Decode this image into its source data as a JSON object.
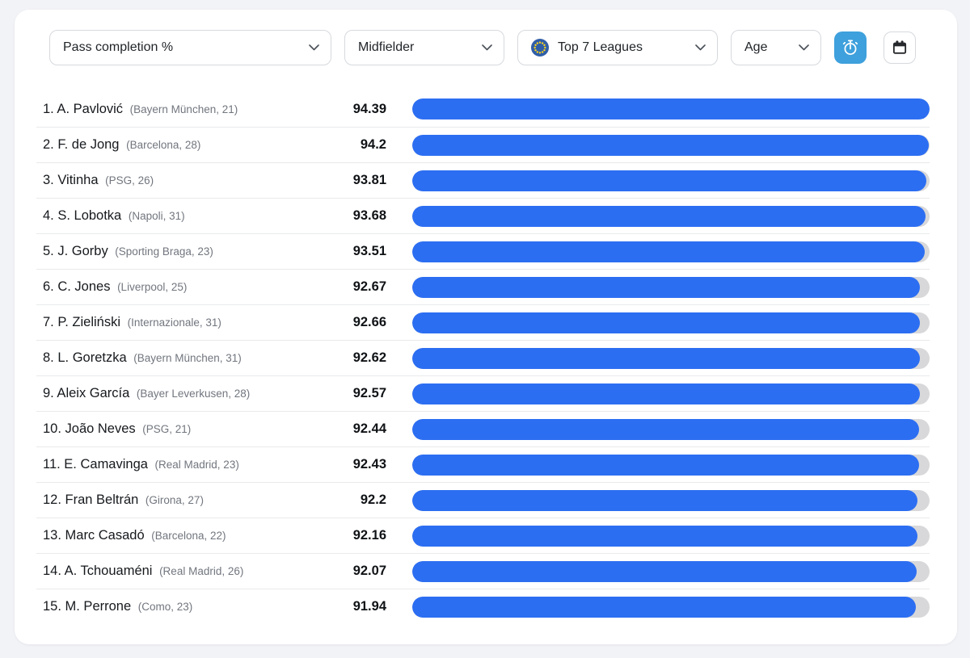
{
  "app": {
    "background": "#f2f3f7",
    "card_background": "#ffffff",
    "accent_blue": "#2c6ef2",
    "track_gray": "#d8d8da",
    "button_blue": "#3ea0dc"
  },
  "filters": {
    "metric": {
      "label": "Pass completion %"
    },
    "position": {
      "label": "Midfielder"
    },
    "league": {
      "label": "Top 7 Leagues",
      "icon": "eu-flag-icon"
    },
    "age": {
      "label": "Age"
    }
  },
  "toolbar": {
    "timer_button": {
      "icon": "stopwatch-icon",
      "active": true,
      "color": "#3ea0dc"
    },
    "calendar_button": {
      "icon": "calendar-icon",
      "active": false
    }
  },
  "chart_data": {
    "type": "bar",
    "orientation": "horizontal",
    "title": "Pass completion %",
    "subtitle": "Midfielder — Top 7 Leagues",
    "bar_color": "#2c6ef2",
    "track_color": "#d8d8da",
    "value_range": [
      0,
      94.39
    ],
    "bar_scale": "value-relative-to-max",
    "categories": [
      "A. Pavlović",
      "F. de Jong",
      "Vitinha",
      "S. Lobotka",
      "J. Gorby",
      "C. Jones",
      "P. Zieliński",
      "L. Goretzka",
      "Aleix García",
      "João Neves",
      "E. Camavinga",
      "Fran Beltrán",
      "Marc Casadó",
      "A. Tchouaméni",
      "M. Perrone"
    ],
    "values": [
      94.39,
      94.2,
      93.81,
      93.68,
      93.51,
      92.67,
      92.66,
      92.62,
      92.57,
      92.44,
      92.43,
      92.2,
      92.16,
      92.07,
      91.94
    ],
    "players": [
      {
        "rank": 1,
        "name": "A. Pavlović",
        "club": "Bayern München",
        "age": 21,
        "value": 94.39
      },
      {
        "rank": 2,
        "name": "F. de Jong",
        "club": "Barcelona",
        "age": 28,
        "value": 94.2
      },
      {
        "rank": 3,
        "name": "Vitinha",
        "club": "PSG",
        "age": 26,
        "value": 93.81
      },
      {
        "rank": 4,
        "name": "S. Lobotka",
        "club": "Napoli",
        "age": 31,
        "value": 93.68
      },
      {
        "rank": 5,
        "name": "J. Gorby",
        "club": "Sporting Braga",
        "age": 23,
        "value": 93.51
      },
      {
        "rank": 6,
        "name": "C. Jones",
        "club": "Liverpool",
        "age": 25,
        "value": 92.67
      },
      {
        "rank": 7,
        "name": "P. Zieliński",
        "club": "Internazionale",
        "age": 31,
        "value": 92.66
      },
      {
        "rank": 8,
        "name": "L. Goretzka",
        "club": "Bayern München",
        "age": 31,
        "value": 92.62
      },
      {
        "rank": 9,
        "name": "Aleix García",
        "club": "Bayer Leverkusen",
        "age": 28,
        "value": 92.57
      },
      {
        "rank": 10,
        "name": "João Neves",
        "club": "PSG",
        "age": 21,
        "value": 92.44
      },
      {
        "rank": 11,
        "name": "E. Camavinga",
        "club": "Real Madrid",
        "age": 23,
        "value": 92.43
      },
      {
        "rank": 12,
        "name": "Fran Beltrán",
        "club": "Girona",
        "age": 27,
        "value": 92.2
      },
      {
        "rank": 13,
        "name": "Marc Casadó",
        "club": "Barcelona",
        "age": 22,
        "value": 92.16
      },
      {
        "rank": 14,
        "name": "A. Tchouaméni",
        "club": "Real Madrid",
        "age": 26,
        "value": 92.07
      },
      {
        "rank": 15,
        "name": "M. Perrone",
        "club": "Como",
        "age": 23,
        "value": 91.94
      }
    ]
  }
}
